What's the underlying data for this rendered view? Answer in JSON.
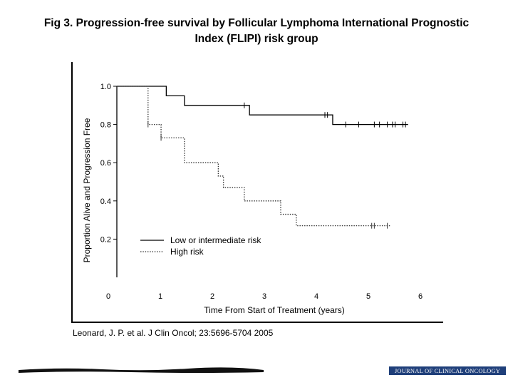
{
  "slide": {
    "title_line1": "Fig 3. Progression-free survival by Follicular Lymphoma International Prognostic",
    "title_line2": "Index (FLIPI) risk group",
    "citation": "Leonard, J. P. et al. J Clin Oncol; 23:5696-5704 2005",
    "journal_banner": "JOURNAL OF CLINICAL ONCOLOGY"
  },
  "chart_data": {
    "type": "line",
    "xlabel": "Time From Start of Treatment (years)",
    "ylabel": "Proportion Alive and Progression Free",
    "xlim": [
      0,
      6
    ],
    "ylim": [
      0,
      1.0
    ],
    "x_ticks": [
      0,
      1,
      2,
      3,
      4,
      5,
      6
    ],
    "y_ticks": [
      0.2,
      0.4,
      0.6,
      0.8,
      1.0
    ],
    "x_tick_labels": [
      "0",
      "1",
      "2",
      "3",
      "4",
      "5",
      "6"
    ],
    "y_tick_labels": [
      "0.2",
      "0.4",
      "0.6",
      "0.8",
      "1.0"
    ],
    "grid": false,
    "legend_position": "bottom-left",
    "series": [
      {
        "name": "Low or intermediate risk",
        "style": "solid",
        "color": "#000000",
        "steps": [
          [
            0,
            1.0
          ],
          [
            0.95,
            0.95
          ],
          [
            1.3,
            0.9
          ],
          [
            2.55,
            0.85
          ],
          [
            4.15,
            0.8
          ],
          [
            5.6,
            0.8
          ]
        ],
        "censor": [
          2.45,
          4.0,
          4.05,
          4.4,
          4.65,
          4.95,
          5.05,
          5.2,
          5.3,
          5.35,
          5.5,
          5.55
        ]
      },
      {
        "name": "High risk",
        "style": "dotted",
        "color": "#333333",
        "steps": [
          [
            0,
            1.0
          ],
          [
            0.6,
            0.8
          ],
          [
            0.85,
            0.73
          ],
          [
            1.3,
            0.6
          ],
          [
            1.95,
            0.53
          ],
          [
            2.05,
            0.47
          ],
          [
            2.45,
            0.4
          ],
          [
            3.15,
            0.33
          ],
          [
            3.45,
            0.27
          ],
          [
            5.25,
            0.27
          ]
        ],
        "censor": [
          0.6,
          0.85,
          4.9,
          4.95,
          5.2
        ]
      }
    ]
  }
}
